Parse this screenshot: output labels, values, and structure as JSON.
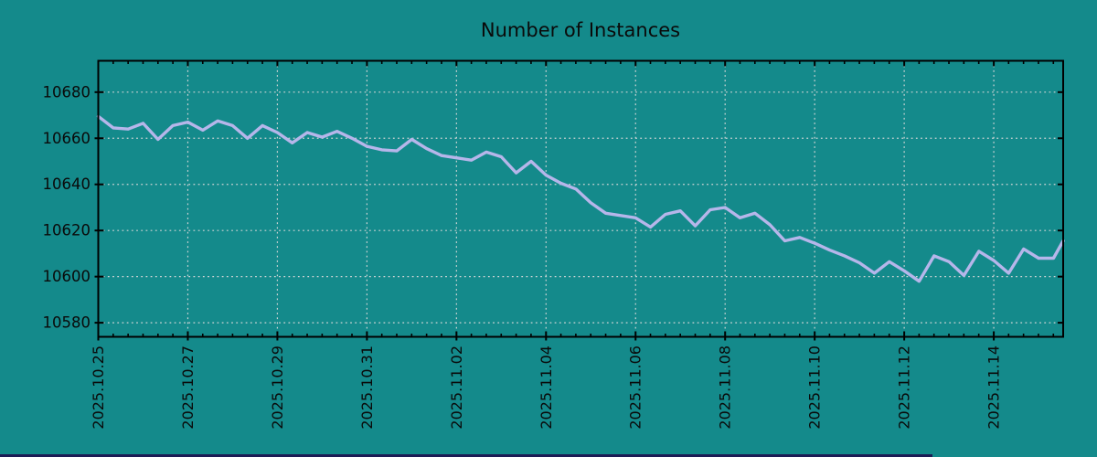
{
  "title": "Number of Instances",
  "colors": {
    "background": "#148a8b",
    "line": "#b6b6ea",
    "grid": "#d9d9d9",
    "axis": "#000000",
    "text": "#0a0a0a",
    "bottom_bar": "#1c1c55"
  },
  "chart_data": {
    "type": "line",
    "title": "Number of Instances",
    "legend": "none",
    "grid": true,
    "x_axis": {
      "unit": "date",
      "major_tick_days": [
        0,
        2,
        4,
        6,
        8,
        10,
        12,
        14,
        16,
        18,
        20
      ],
      "major_tick_labels": [
        "2025.10.25",
        "2025.10.27",
        "2025.10.29",
        "2025.10.31",
        "2025.11.02",
        "2025.11.04",
        "2025.11.06",
        "2025.11.08",
        "2025.11.10",
        "2025.11.12",
        "2025.11.14"
      ],
      "minor_tick_interval_days": 0.3333,
      "range_days": [
        0,
        21.55
      ]
    },
    "y_axis": {
      "tick_values": [
        10580,
        10600,
        10620,
        10640,
        10660,
        10680
      ],
      "range": [
        10573.9,
        10693.6
      ]
    },
    "series": [
      {
        "name": "instances",
        "x_days": [
          0,
          0.333,
          0.667,
          1,
          1.333,
          1.667,
          2,
          2.333,
          2.667,
          3,
          3.333,
          3.667,
          4,
          4.333,
          4.667,
          5,
          5.333,
          5.667,
          6,
          6.333,
          6.667,
          7,
          7.333,
          7.667,
          8,
          8.333,
          8.667,
          9,
          9.333,
          9.667,
          10,
          10.333,
          10.667,
          11,
          11.333,
          11.667,
          12,
          12.333,
          12.667,
          13,
          13.333,
          13.667,
          14,
          14.333,
          14.667,
          15,
          15.333,
          15.667,
          16,
          16.333,
          16.667,
          17,
          17.333,
          17.667,
          18,
          18.333,
          18.667,
          19,
          19.333,
          19.667,
          20,
          20.333,
          20.667,
          21,
          21.333,
          21.55
        ],
        "values": [
          10669.5,
          10664.5,
          10664,
          10666.5,
          10659.5,
          10665.5,
          10667,
          10663.5,
          10667.5,
          10665.5,
          10660,
          10665.5,
          10662.5,
          10658,
          10662.5,
          10660.5,
          10663,
          10660,
          10656.5,
          10655,
          10654.5,
          10659.5,
          10655.5,
          10652.5,
          10651.5,
          10650.5,
          10654,
          10652,
          10645,
          10650,
          10644,
          10640.5,
          10638,
          10632,
          10627.5,
          10626.5,
          10625.5,
          10621.5,
          10627,
          10628.5,
          10622,
          10629,
          10630,
          10625.5,
          10627.5,
          10622.5,
          10615.5,
          10617,
          10614.5,
          10611.5,
          10609,
          10606,
          10601.5,
          10606.5,
          10602.5,
          10598,
          10609,
          10606.5,
          10600.5,
          10611,
          10607,
          10601.5,
          10612,
          10608,
          10608,
          10615.5
        ]
      }
    ]
  }
}
